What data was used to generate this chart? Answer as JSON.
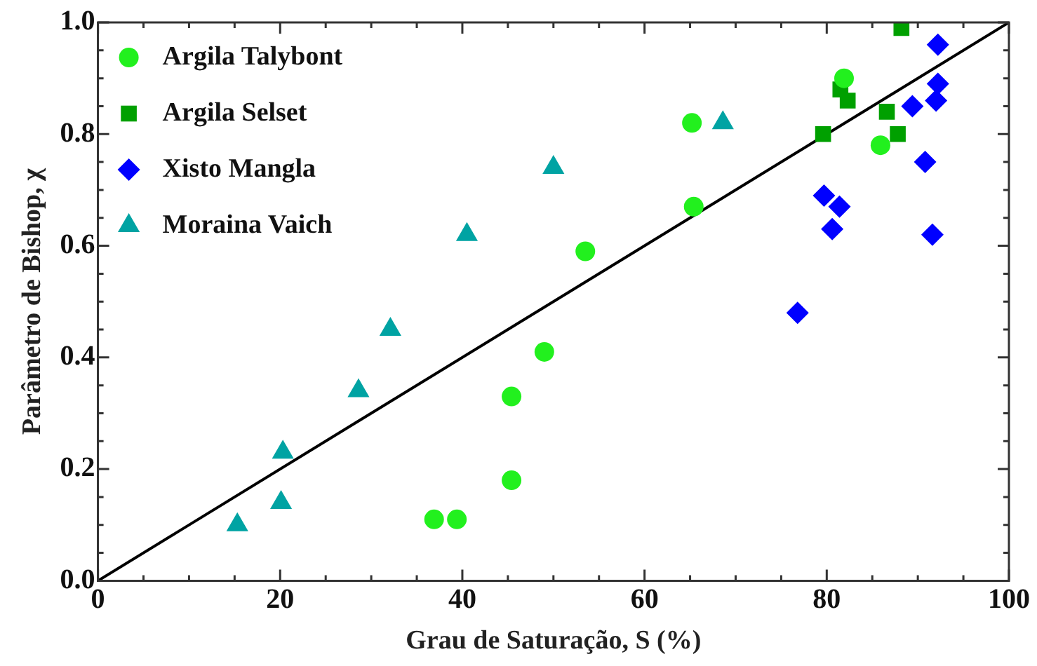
{
  "chart_data": {
    "type": "scatter",
    "xlabel": "Grau de Saturação, S (%)",
    "ylabel": "Parâmetro de Bishop, χ",
    "xlim": [
      0,
      100
    ],
    "ylim": [
      0,
      1
    ],
    "xticks": [
      0,
      {
        "value": 5,
        "label": null
      },
      {
        "value": 10,
        "label": null
      },
      {
        "value": 15,
        "label": null
      },
      20,
      {
        "value": 25,
        "label": null
      },
      {
        "value": 30,
        "label": null
      },
      {
        "value": 35,
        "label": null
      },
      40,
      {
        "value": 45,
        "label": null
      },
      {
        "value": 50,
        "label": null
      },
      {
        "value": 55,
        "label": null
      },
      60,
      {
        "value": 65,
        "label": null
      },
      {
        "value": 70,
        "label": null
      },
      {
        "value": 75,
        "label": null
      },
      80,
      {
        "value": 85,
        "label": null
      },
      {
        "value": 90,
        "label": null
      },
      {
        "value": 95,
        "label": null
      },
      100
    ],
    "yticks": [
      {
        "value": 0,
        "label": "0.0"
      },
      {
        "value": 0.05,
        "label": null
      },
      {
        "value": 0.1,
        "label": null
      },
      {
        "value": 0.15,
        "label": null
      },
      {
        "value": 0.2,
        "label": "0.2"
      },
      {
        "value": 0.25,
        "label": null
      },
      {
        "value": 0.3,
        "label": null
      },
      {
        "value": 0.35,
        "label": null
      },
      {
        "value": 0.4,
        "label": "0.4"
      },
      {
        "value": 0.45,
        "label": null
      },
      {
        "value": 0.5,
        "label": null
      },
      {
        "value": 0.55,
        "label": null
      },
      {
        "value": 0.6,
        "label": "0.6"
      },
      {
        "value": 0.65,
        "label": null
      },
      {
        "value": 0.7,
        "label": null
      },
      {
        "value": 0.75,
        "label": null
      },
      {
        "value": 0.8,
        "label": "0.8"
      },
      {
        "value": 0.85,
        "label": null
      },
      {
        "value": 0.9,
        "label": null
      },
      {
        "value": 0.95,
        "label": null
      },
      {
        "value": 1,
        "label": "1.0"
      }
    ],
    "grid": false,
    "legend": "top left",
    "series": [
      {
        "name": "Argila Talybont",
        "color": "#22f01e",
        "marker": "circle",
        "x": [
          36.9,
          39.4,
          45.4,
          45.4,
          49.0,
          53.5,
          65.2,
          65.4,
          81.9,
          85.9
        ],
        "values": [
          0.11,
          0.11,
          0.18,
          0.33,
          0.41,
          0.59,
          0.82,
          0.67,
          0.9,
          0.78
        ]
      },
      {
        "name": "Argila Selset",
        "color": "#00a000",
        "marker": "square",
        "x": [
          88.2,
          81.5,
          82.3,
          79.6,
          86.6,
          87.8
        ],
        "values": [
          0.99,
          0.88,
          0.86,
          0.8,
          0.84,
          0.8
        ]
      },
      {
        "name": "Xisto Mangla",
        "color": "#0000ff",
        "marker": "diamond",
        "x": [
          92.2,
          92.2,
          92.0,
          89.4,
          90.8,
          79.7,
          81.4,
          80.6,
          91.6,
          76.8
        ],
        "values": [
          0.96,
          0.89,
          0.86,
          0.85,
          0.75,
          0.69,
          0.67,
          0.63,
          0.62,
          0.48
        ]
      },
      {
        "name": "Moraina Vaich",
        "color": "#00a3a3",
        "marker": "triangle",
        "x": [
          15.3,
          20.1,
          20.3,
          28.6,
          32.1,
          40.5,
          50.0,
          68.6
        ],
        "values": [
          0.1,
          0.14,
          0.23,
          0.34,
          0.45,
          0.62,
          0.74,
          0.82
        ]
      },
      {
        "type": "line",
        "color": "#000000",
        "marker": "none",
        "line_style": "solid",
        "x": [
          0,
          100
        ],
        "values": [
          0,
          1
        ]
      }
    ]
  }
}
